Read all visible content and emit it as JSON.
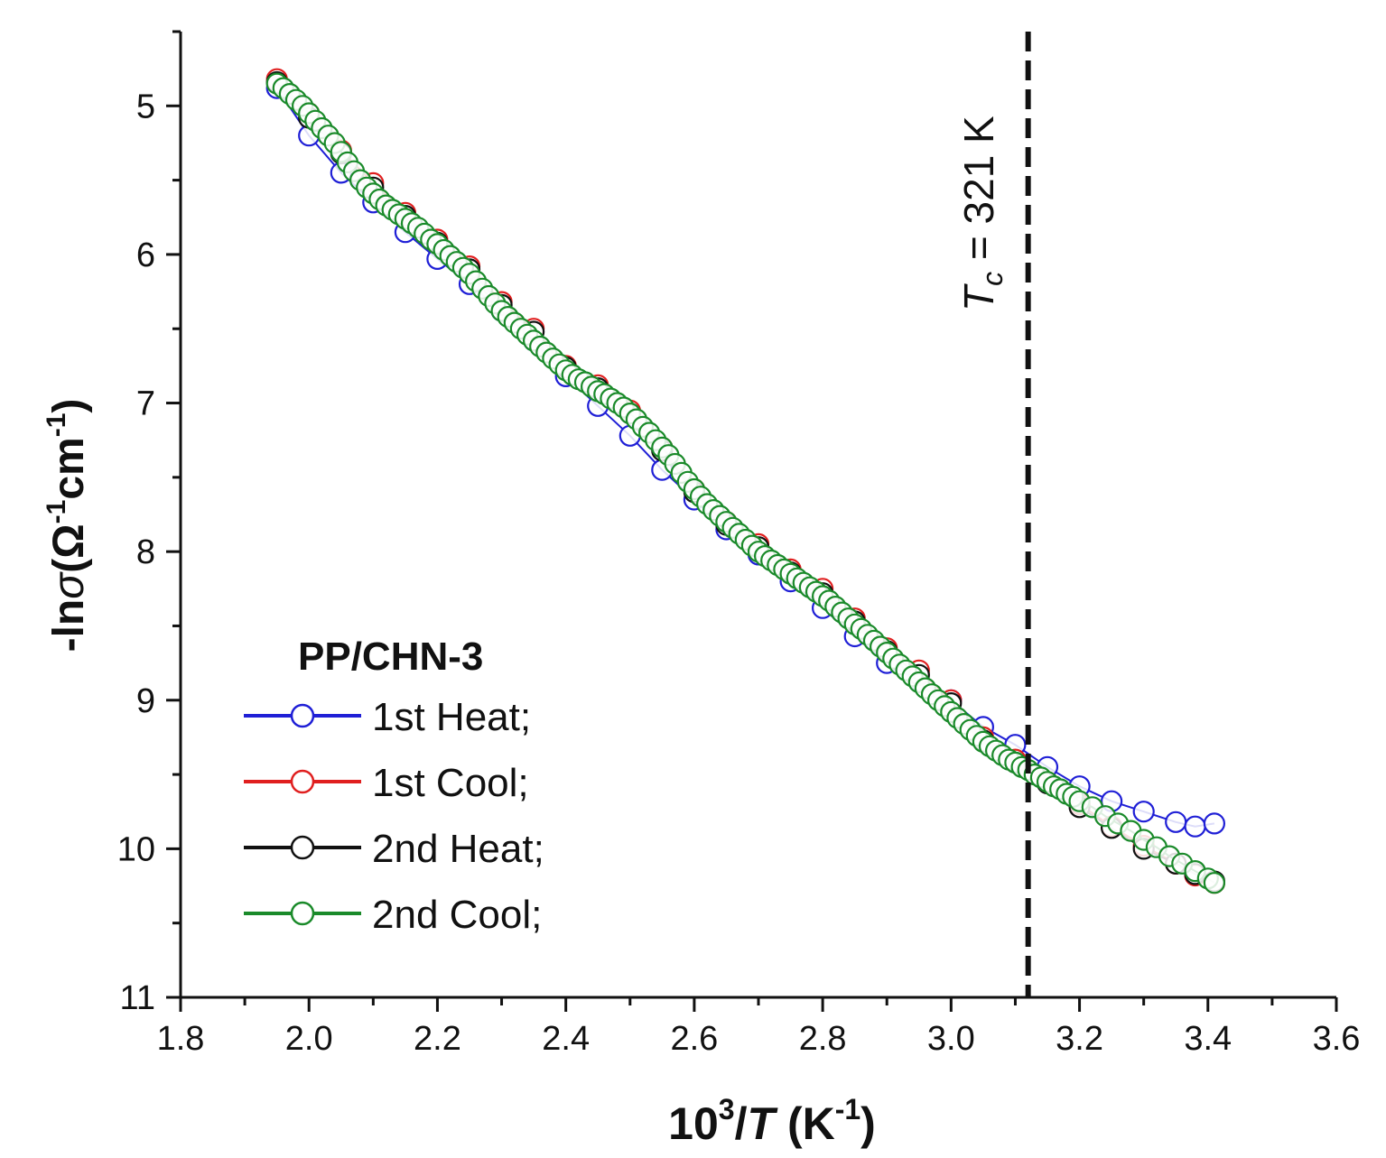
{
  "chart_data": {
    "type": "scatter",
    "xlabel_parts": [
      "10",
      "3",
      "/",
      "T",
      " (K",
      "-1",
      ")"
    ],
    "ylabel_parts": [
      "-ln",
      "σ",
      "(Ω",
      "-1",
      "cm",
      "-1",
      ")"
    ],
    "xlim": [
      1.8,
      3.6
    ],
    "ylim": [
      11,
      4.5
    ],
    "y_inverted": true,
    "x_ticks": [
      "1.8",
      "2.0",
      "2.2",
      "2.4",
      "2.6",
      "2.8",
      "3.0",
      "3.2",
      "3.4",
      "3.6"
    ],
    "y_ticks": [
      "5",
      "6",
      "7",
      "8",
      "9",
      "10",
      "11"
    ],
    "grid": false,
    "legend": {
      "title": "PP/CHN-3",
      "placement": "bottom-left",
      "entries": [
        "1st Heat;",
        "1st Cool;",
        "2nd Heat;",
        "2nd Cool;"
      ]
    },
    "annotation": {
      "x": 3.12,
      "parts": [
        "T",
        "c",
        " = 321 K"
      ],
      "style": "dashed-vertical-line"
    },
    "series": [
      {
        "name": "1st Heat;",
        "color": "#1f1fd6",
        "points": [
          [
            1.95,
            4.88
          ],
          [
            2.0,
            5.2
          ],
          [
            2.05,
            5.45
          ],
          [
            2.1,
            5.65
          ],
          [
            2.15,
            5.85
          ],
          [
            2.2,
            6.03
          ],
          [
            2.25,
            6.2
          ],
          [
            2.3,
            6.38
          ],
          [
            2.35,
            6.58
          ],
          [
            2.4,
            6.82
          ],
          [
            2.45,
            7.02
          ],
          [
            2.5,
            7.22
          ],
          [
            2.55,
            7.45
          ],
          [
            2.6,
            7.65
          ],
          [
            2.65,
            7.85
          ],
          [
            2.7,
            8.02
          ],
          [
            2.75,
            8.2
          ],
          [
            2.8,
            8.38
          ],
          [
            2.85,
            8.57
          ],
          [
            2.9,
            8.75
          ],
          [
            2.95,
            8.87
          ],
          [
            3.0,
            9.0
          ],
          [
            3.05,
            9.18
          ],
          [
            3.1,
            9.3
          ],
          [
            3.15,
            9.45
          ],
          [
            3.2,
            9.58
          ],
          [
            3.25,
            9.68
          ],
          [
            3.3,
            9.75
          ],
          [
            3.35,
            9.82
          ],
          [
            3.38,
            9.85
          ],
          [
            3.41,
            9.83
          ]
        ]
      },
      {
        "name": "1st Cool;",
        "color": "#e01f1f",
        "points": [
          [
            1.95,
            4.82
          ],
          [
            2.0,
            5.05
          ],
          [
            2.05,
            5.3
          ],
          [
            2.1,
            5.52
          ],
          [
            2.15,
            5.72
          ],
          [
            2.2,
            5.9
          ],
          [
            2.25,
            6.08
          ],
          [
            2.3,
            6.32
          ],
          [
            2.35,
            6.5
          ],
          [
            2.4,
            6.75
          ],
          [
            2.45,
            6.88
          ],
          [
            2.5,
            7.05
          ],
          [
            2.55,
            7.3
          ],
          [
            2.6,
            7.58
          ],
          [
            2.65,
            7.8
          ],
          [
            2.7,
            7.95
          ],
          [
            2.75,
            8.12
          ],
          [
            2.8,
            8.25
          ],
          [
            2.85,
            8.45
          ],
          [
            2.9,
            8.65
          ],
          [
            2.95,
            8.8
          ],
          [
            3.0,
            9.0
          ],
          [
            3.05,
            9.25
          ],
          [
            3.1,
            9.4
          ],
          [
            3.15,
            9.55
          ],
          [
            3.2,
            9.7
          ],
          [
            3.25,
            9.85
          ],
          [
            3.3,
            9.98
          ],
          [
            3.35,
            10.1
          ],
          [
            3.38,
            10.18
          ],
          [
            3.41,
            10.23
          ]
        ]
      },
      {
        "name": "2nd Heat;",
        "color": "#111111",
        "points": [
          [
            1.95,
            4.84
          ],
          [
            2.0,
            5.08
          ],
          [
            2.05,
            5.32
          ],
          [
            2.1,
            5.55
          ],
          [
            2.15,
            5.74
          ],
          [
            2.2,
            5.92
          ],
          [
            2.25,
            6.1
          ],
          [
            2.3,
            6.34
          ],
          [
            2.35,
            6.52
          ],
          [
            2.4,
            6.76
          ],
          [
            2.45,
            6.9
          ],
          [
            2.5,
            7.07
          ],
          [
            2.55,
            7.32
          ],
          [
            2.6,
            7.6
          ],
          [
            2.65,
            7.82
          ],
          [
            2.7,
            7.97
          ],
          [
            2.75,
            8.14
          ],
          [
            2.8,
            8.28
          ],
          [
            2.85,
            8.47
          ],
          [
            2.9,
            8.67
          ],
          [
            2.95,
            8.83
          ],
          [
            3.0,
            9.02
          ],
          [
            3.05,
            9.27
          ],
          [
            3.1,
            9.42
          ],
          [
            3.15,
            9.56
          ],
          [
            3.2,
            9.72
          ],
          [
            3.25,
            9.86
          ],
          [
            3.3,
            10.0
          ],
          [
            3.35,
            10.1
          ],
          [
            3.38,
            10.17
          ],
          [
            3.41,
            10.22
          ]
        ]
      },
      {
        "name": "2nd Cool;",
        "color": "#1a8a2a",
        "points": [
          [
            1.95,
            4.85
          ],
          [
            1.96,
            4.88
          ],
          [
            1.97,
            4.92
          ],
          [
            1.98,
            4.96
          ],
          [
            1.99,
            5.0
          ],
          [
            2.0,
            5.05
          ],
          [
            2.01,
            5.1
          ],
          [
            2.02,
            5.15
          ],
          [
            2.03,
            5.2
          ],
          [
            2.04,
            5.25
          ],
          [
            2.05,
            5.31
          ],
          [
            2.06,
            5.38
          ],
          [
            2.07,
            5.44
          ],
          [
            2.08,
            5.5
          ],
          [
            2.09,
            5.55
          ],
          [
            2.1,
            5.59
          ],
          [
            2.11,
            5.63
          ],
          [
            2.12,
            5.67
          ],
          [
            2.13,
            5.7
          ],
          [
            2.14,
            5.73
          ],
          [
            2.15,
            5.76
          ],
          [
            2.16,
            5.79
          ],
          [
            2.17,
            5.82
          ],
          [
            2.18,
            5.86
          ],
          [
            2.19,
            5.9
          ],
          [
            2.2,
            5.93
          ],
          [
            2.21,
            5.97
          ],
          [
            2.22,
            6.01
          ],
          [
            2.23,
            6.05
          ],
          [
            2.24,
            6.09
          ],
          [
            2.25,
            6.13
          ],
          [
            2.26,
            6.18
          ],
          [
            2.27,
            6.23
          ],
          [
            2.28,
            6.28
          ],
          [
            2.29,
            6.33
          ],
          [
            2.3,
            6.38
          ],
          [
            2.31,
            6.42
          ],
          [
            2.32,
            6.46
          ],
          [
            2.33,
            6.5
          ],
          [
            2.34,
            6.54
          ],
          [
            2.35,
            6.58
          ],
          [
            2.36,
            6.62
          ],
          [
            2.37,
            6.66
          ],
          [
            2.38,
            6.7
          ],
          [
            2.39,
            6.74
          ],
          [
            2.4,
            6.78
          ],
          [
            2.41,
            6.81
          ],
          [
            2.42,
            6.84
          ],
          [
            2.43,
            6.86
          ],
          [
            2.44,
            6.89
          ],
          [
            2.45,
            6.92
          ],
          [
            2.46,
            6.94
          ],
          [
            2.47,
            6.97
          ],
          [
            2.48,
            7.0
          ],
          [
            2.49,
            7.03
          ],
          [
            2.5,
            7.07
          ],
          [
            2.51,
            7.11
          ],
          [
            2.52,
            7.16
          ],
          [
            2.53,
            7.2
          ],
          [
            2.54,
            7.25
          ],
          [
            2.55,
            7.3
          ],
          [
            2.56,
            7.35
          ],
          [
            2.57,
            7.41
          ],
          [
            2.58,
            7.47
          ],
          [
            2.59,
            7.53
          ],
          [
            2.6,
            7.58
          ],
          [
            2.61,
            7.63
          ],
          [
            2.62,
            7.68
          ],
          [
            2.63,
            7.72
          ],
          [
            2.64,
            7.76
          ],
          [
            2.65,
            7.8
          ],
          [
            2.66,
            7.84
          ],
          [
            2.67,
            7.88
          ],
          [
            2.68,
            7.92
          ],
          [
            2.69,
            7.96
          ],
          [
            2.7,
            8.0
          ],
          [
            2.71,
            8.03
          ],
          [
            2.72,
            8.06
          ],
          [
            2.73,
            8.09
          ],
          [
            2.74,
            8.12
          ],
          [
            2.75,
            8.15
          ],
          [
            2.76,
            8.18
          ],
          [
            2.77,
            8.21
          ],
          [
            2.78,
            8.24
          ],
          [
            2.79,
            8.27
          ],
          [
            2.8,
            8.3
          ],
          [
            2.81,
            8.33
          ],
          [
            2.82,
            8.37
          ],
          [
            2.83,
            8.41
          ],
          [
            2.84,
            8.45
          ],
          [
            2.85,
            8.49
          ],
          [
            2.86,
            8.52
          ],
          [
            2.87,
            8.56
          ],
          [
            2.88,
            8.6
          ],
          [
            2.89,
            8.64
          ],
          [
            2.9,
            8.68
          ],
          [
            2.91,
            8.72
          ],
          [
            2.92,
            8.76
          ],
          [
            2.93,
            8.8
          ],
          [
            2.94,
            8.84
          ],
          [
            2.95,
            8.88
          ],
          [
            2.96,
            8.92
          ],
          [
            2.97,
            8.96
          ],
          [
            2.98,
            9.0
          ],
          [
            2.99,
            9.04
          ],
          [
            3.0,
            9.08
          ],
          [
            3.01,
            9.12
          ],
          [
            3.02,
            9.16
          ],
          [
            3.03,
            9.2
          ],
          [
            3.04,
            9.24
          ],
          [
            3.05,
            9.28
          ],
          [
            3.06,
            9.31
          ],
          [
            3.07,
            9.34
          ],
          [
            3.08,
            9.37
          ],
          [
            3.09,
            9.4
          ],
          [
            3.1,
            9.42
          ],
          [
            3.11,
            9.45
          ],
          [
            3.12,
            9.47
          ],
          [
            3.13,
            9.5
          ],
          [
            3.14,
            9.52
          ],
          [
            3.15,
            9.55
          ],
          [
            3.16,
            9.58
          ],
          [
            3.17,
            9.6
          ],
          [
            3.18,
            9.63
          ],
          [
            3.19,
            9.65
          ],
          [
            3.2,
            9.68
          ],
          [
            3.22,
            9.72
          ],
          [
            3.24,
            9.78
          ],
          [
            3.26,
            9.83
          ],
          [
            3.28,
            9.88
          ],
          [
            3.3,
            9.94
          ],
          [
            3.32,
            9.99
          ],
          [
            3.34,
            10.05
          ],
          [
            3.36,
            10.1
          ],
          [
            3.38,
            10.15
          ],
          [
            3.4,
            10.2
          ],
          [
            3.41,
            10.23
          ]
        ]
      }
    ]
  }
}
